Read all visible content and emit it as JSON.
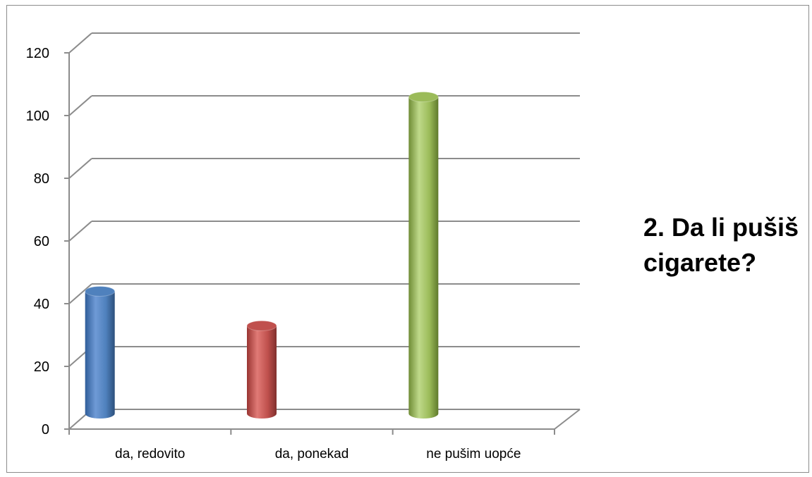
{
  "chart_data": {
    "type": "bar",
    "style": "3d-cylinder",
    "title": "2. Da li pušiš cigarete?",
    "categories": [
      "da, redovito",
      "da, ponekad",
      "ne pušim uopće"
    ],
    "values": [
      39,
      28,
      101
    ],
    "colors": [
      "#4f81bd",
      "#c0504d",
      "#9bbb59"
    ],
    "ylim": [
      0,
      120
    ],
    "yticks": [
      0,
      20,
      40,
      60,
      80,
      100,
      120
    ],
    "xlabel": "",
    "ylabel": "",
    "grid": true,
    "legend": "none"
  }
}
